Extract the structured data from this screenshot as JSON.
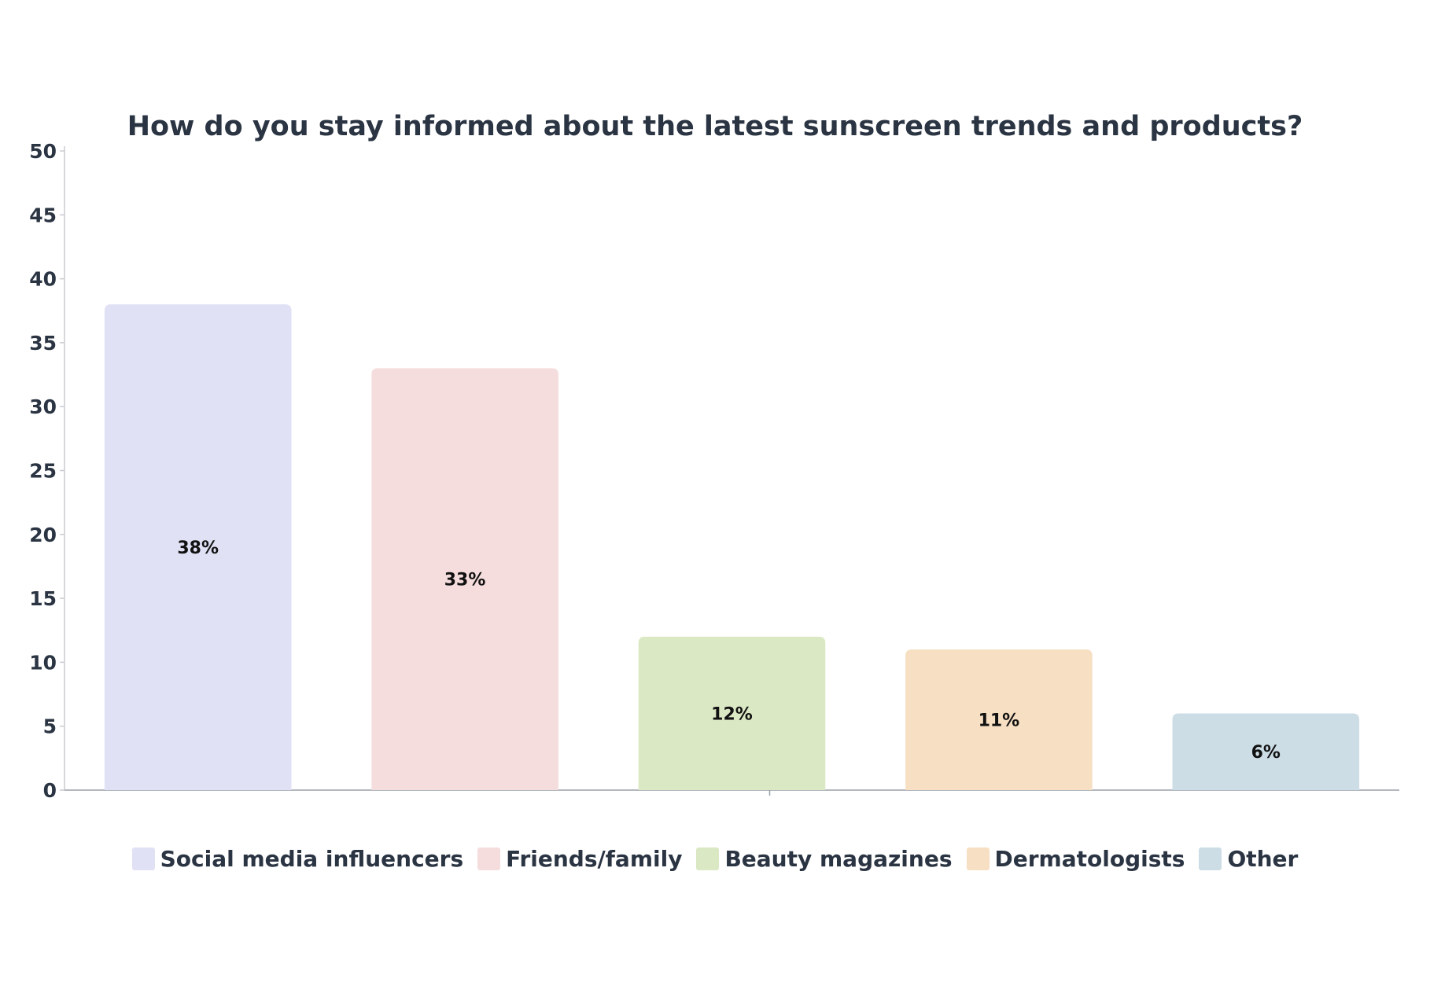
{
  "chart_data": {
    "type": "bar",
    "title": "How do you stay informed about the latest sunscreen trends and products?",
    "xlabel": "",
    "ylabel": "",
    "categories": [
      "Social media influencers",
      "Friends/family",
      "Beauty magazines",
      "Dermatologists",
      "Other"
    ],
    "values": [
      38,
      33,
      12,
      11,
      6
    ],
    "data_labels": [
      "38%",
      "33%",
      "12%",
      "11%",
      "6%"
    ],
    "colors": [
      "#e0e1f5",
      "#f5dddd",
      "#dbe8c4",
      "#f7dfc3",
      "#cddde6"
    ],
    "ylim": [
      0,
      50
    ],
    "yticks": [
      0,
      5,
      10,
      15,
      20,
      25,
      30,
      35,
      40,
      45,
      50
    ],
    "grid": false,
    "legend_position": "bottom"
  }
}
